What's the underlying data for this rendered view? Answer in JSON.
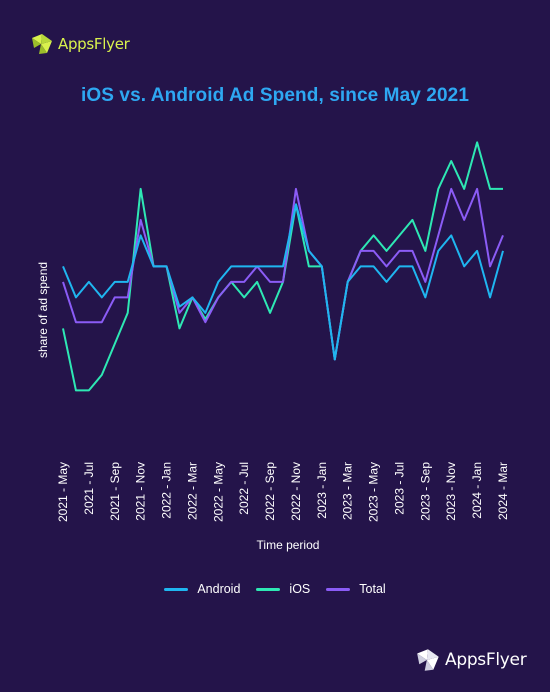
{
  "brand": {
    "name": "AppsFlyer",
    "logo_color": "#d9f24d"
  },
  "colors": {
    "background": "#24144a",
    "title": "#2ea8f2"
  },
  "chart_data": {
    "type": "line",
    "title": "iOS vs. Android Ad Spend, since May 2021",
    "xlabel": "Time period",
    "ylabel": "share of ad spend",
    "y_ticks_shown": false,
    "grid": false,
    "legend_position": "bottom",
    "ylim": [
      0,
      100
    ],
    "categories": [
      "2021 - May",
      "2021 - Jun",
      "2021 - Jul",
      "2021 - Aug",
      "2021 - Sep",
      "2021 - Oct",
      "2021 - Nov",
      "2021 - Dec",
      "2022 - Jan",
      "2022 - Feb",
      "2022 - Mar",
      "2022 - Apr",
      "2022 - May",
      "2022 - Jun",
      "2022 - Jul",
      "2022 - Aug",
      "2022 - Sep",
      "2022 - Oct",
      "2022 - Nov",
      "2022 - Dec",
      "2023 - Jan",
      "2023 - Feb",
      "2023 - Mar",
      "2023 - Apr",
      "2023 - May",
      "2023 - Jun",
      "2023 - Jul",
      "2023 - Aug",
      "2023 - Sep",
      "2023 - Oct",
      "2023 - Nov",
      "2023 - Dec",
      "2024 - Jan",
      "2024 - Feb",
      "2024 - Mar"
    ],
    "tick_labels": [
      "2021 - May",
      "2021 - Jul",
      "2021 - Sep",
      "2021 - Nov",
      "2022 - Jan",
      "2022 - Mar",
      "2022 - May",
      "2022 - Jul",
      "2022 - Sep",
      "2022 - Nov",
      "2023 - Jan",
      "2023 - Mar",
      "2023 - May",
      "2023 - Jul",
      "2023 - Sep",
      "2023 - Nov",
      "2024 - Jan",
      "2024 - Mar"
    ],
    "series": [
      {
        "name": "Android",
        "color": "#1fb6f0",
        "values": [
          56,
          46,
          51,
          46,
          51,
          51,
          66,
          56,
          56,
          43,
          46,
          41,
          51,
          56,
          56,
          56,
          56,
          56,
          76,
          61,
          56,
          26,
          51,
          56,
          56,
          51,
          56,
          56,
          46,
          61,
          66,
          56,
          61,
          46,
          61
        ]
      },
      {
        "name": "iOS",
        "color": "#2ee8b4",
        "values": [
          36,
          16,
          16,
          21,
          31,
          41,
          81,
          56,
          56,
          36,
          46,
          39,
          46,
          51,
          46,
          51,
          41,
          51,
          76,
          56,
          56,
          26,
          51,
          61,
          66,
          61,
          66,
          71,
          61,
          81,
          90,
          81,
          96,
          81,
          81
        ]
      },
      {
        "name": "Total",
        "color": "#8b5cf6",
        "values": [
          51,
          38,
          38,
          38,
          46,
          46,
          71,
          56,
          56,
          41,
          46,
          38,
          46,
          51,
          51,
          56,
          51,
          51,
          81,
          61,
          56,
          26,
          51,
          61,
          61,
          56,
          61,
          61,
          51,
          66,
          81,
          71,
          81,
          56,
          66
        ]
      }
    ]
  }
}
